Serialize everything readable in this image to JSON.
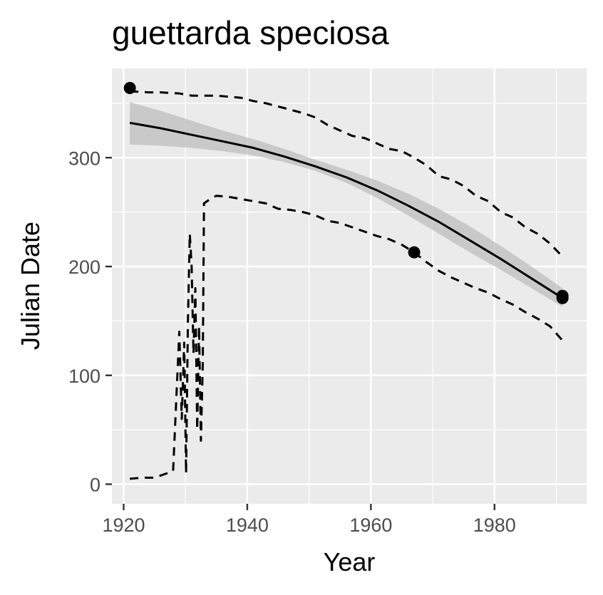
{
  "chart_data": {
    "type": "line",
    "title": "guettarda speciosa",
    "xlabel": "Year",
    "ylabel": "Julian Date",
    "xlim": [
      1918.1,
      1994.9
    ],
    "ylim": [
      -18,
      382
    ],
    "grid": true,
    "legend": "none",
    "x_ticks": [
      1920,
      1940,
      1960,
      1980
    ],
    "y_ticks": [
      0,
      100,
      200,
      300
    ],
    "x_tick_labels": [
      "1920",
      "1940",
      "1960",
      "1980"
    ],
    "y_tick_labels": [
      "0",
      "100",
      "200",
      "300"
    ],
    "colors": {
      "panel": "#ebebeb",
      "grid": "#ffffff",
      "ribbon": "#bdbdbd",
      "line": "#000000",
      "points": "#000000"
    },
    "points": [
      {
        "x": 1921,
        "y": 364
      },
      {
        "x": 1967,
        "y": 213
      },
      {
        "x": 1991,
        "y": 171
      },
      {
        "x": 1991,
        "y": 173
      }
    ],
    "fit": {
      "x": [
        1921,
        1926,
        1931,
        1936,
        1941,
        1946,
        1951,
        1956,
        1961,
        1966,
        1971,
        1976,
        1981,
        1986,
        1991
      ],
      "y": [
        332,
        327,
        321,
        315,
        309,
        301,
        292,
        282,
        270,
        256,
        241,
        224,
        207,
        189,
        171
      ]
    },
    "ribbon": {
      "x": [
        1921,
        1926,
        1931,
        1936,
        1941,
        1946,
        1951,
        1956,
        1961,
        1966,
        1971,
        1976,
        1981,
        1986,
        1991
      ],
      "lower": [
        312,
        311,
        309,
        306,
        302,
        296,
        288,
        277,
        263,
        247,
        230,
        213,
        197,
        180,
        163
      ],
      "upper": [
        351,
        343,
        334,
        325,
        317,
        308,
        298,
        289,
        279,
        267,
        253,
        237,
        219,
        200,
        180
      ]
    },
    "upper_bound": {
      "x": [
        1921,
        1924,
        1926,
        1929,
        1931,
        1933,
        1935,
        1937,
        1939,
        1941,
        1943,
        1945,
        1947,
        1949,
        1951,
        1953,
        1955,
        1957,
        1959,
        1961,
        1963,
        1965,
        1967,
        1969,
        1971,
        1973,
        1975,
        1977,
        1979,
        1981,
        1983,
        1985,
        1987,
        1989,
        1991
      ],
      "y": [
        361,
        360,
        360,
        359,
        357,
        357,
        357,
        356,
        355,
        352,
        350,
        347,
        344,
        341,
        337,
        330,
        325,
        320,
        318,
        313,
        308,
        306,
        300,
        293,
        283,
        280,
        274,
        265,
        260,
        250,
        245,
        236,
        230,
        221,
        209
      ]
    },
    "lower_bound": {
      "x": [
        1921,
        1923,
        1925,
        1927,
        1928,
        1929,
        1929.4,
        1929.8,
        1930.1,
        1930.4,
        1930.7,
        1931,
        1931.3,
        1931.6,
        1931.9,
        1932.2,
        1932.5,
        1932.8,
        1933,
        1934,
        1935,
        1937,
        1939,
        1941,
        1943,
        1945,
        1947,
        1949,
        1951,
        1953,
        1955,
        1957,
        1959,
        1961,
        1963,
        1965,
        1967,
        1969,
        1971,
        1973,
        1975,
        1977,
        1979,
        1981,
        1983,
        1985,
        1987,
        1989,
        1991
      ],
      "y": [
        5,
        6,
        6,
        10,
        12,
        140,
        60,
        130,
        10,
        150,
        230,
        200,
        120,
        180,
        50,
        145,
        40,
        110,
        258,
        262,
        265,
        264,
        262,
        260,
        258,
        253,
        252,
        250,
        247,
        242,
        240,
        236,
        232,
        228,
        225,
        220,
        213,
        204,
        196,
        190,
        185,
        180,
        176,
        170,
        165,
        158,
        152,
        145,
        132
      ]
    }
  }
}
